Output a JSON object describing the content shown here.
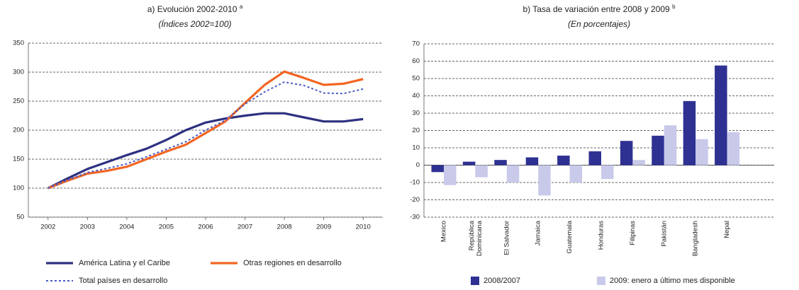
{
  "chart_data": [
    {
      "type": "line",
      "title": "a) Evolución 2002-2010",
      "title_superscript": "a",
      "subtitle": "(Índices 2002=100)",
      "x": [
        2002,
        2002.5,
        2003,
        2003.5,
        2004,
        2004.5,
        2005,
        2005.5,
        2006,
        2006.5,
        2007,
        2007.5,
        2008,
        2008.5,
        2009,
        2009.5,
        2010
      ],
      "series": [
        {
          "name": "América Latina y el Caribe",
          "color": "#2e3180",
          "style": "solid",
          "values": [
            100,
            117,
            133,
            145,
            157,
            168,
            183,
            200,
            213,
            220,
            225,
            229,
            229,
            222,
            215,
            215,
            219
          ]
        },
        {
          "name": "Otras regiones en desarrollo",
          "color": "#f26522",
          "style": "solid",
          "values": [
            100,
            113,
            125,
            130,
            137,
            150,
            163,
            175,
            195,
            215,
            247,
            278,
            301,
            290,
            278,
            280,
            288
          ]
        },
        {
          "name": "Total países en desarrollo",
          "color": "#4a5bc4",
          "style": "dotted",
          "values": [
            100,
            114,
            127,
            134,
            142,
            154,
            167,
            180,
            200,
            217,
            245,
            266,
            283,
            277,
            264,
            263,
            271
          ]
        }
      ],
      "xlim": [
        2001.5,
        2010.5
      ],
      "xticks": [
        2002,
        2003,
        2004,
        2005,
        2006,
        2007,
        2008,
        2009,
        2010
      ],
      "ylim": [
        50,
        350
      ],
      "yticks": [
        50,
        100,
        150,
        200,
        250,
        300,
        350
      ],
      "grid": true
    },
    {
      "type": "bar",
      "title": "b) Tasa de variación entre 2008 y 2009",
      "title_superscript": "b",
      "subtitle": "(En porcentajes)",
      "categories": [
        "Mexico",
        "República Dominicana",
        "El Salvador",
        "Jamaica",
        "Guatemala",
        "Honduras",
        "Filipinas",
        "Pakistán",
        "Bangladesh",
        "Nepal"
      ],
      "series": [
        {
          "name": "2008/2007",
          "color": "#2e3192",
          "values": [
            -4,
            2,
            3,
            4.5,
            5.5,
            8,
            14,
            17,
            37,
            57.5
          ]
        },
        {
          "name": "2009: enero a último mes disponible",
          "color": "#c9c9ea",
          "values": [
            -11.5,
            -7,
            -10,
            -17.5,
            -10,
            -8,
            3,
            23,
            15,
            19
          ]
        }
      ],
      "ylim": [
        -30,
        70
      ],
      "yticks": [
        -30,
        -20,
        -10,
        0,
        10,
        20,
        30,
        40,
        50,
        60,
        70
      ],
      "grid": true
    }
  ]
}
